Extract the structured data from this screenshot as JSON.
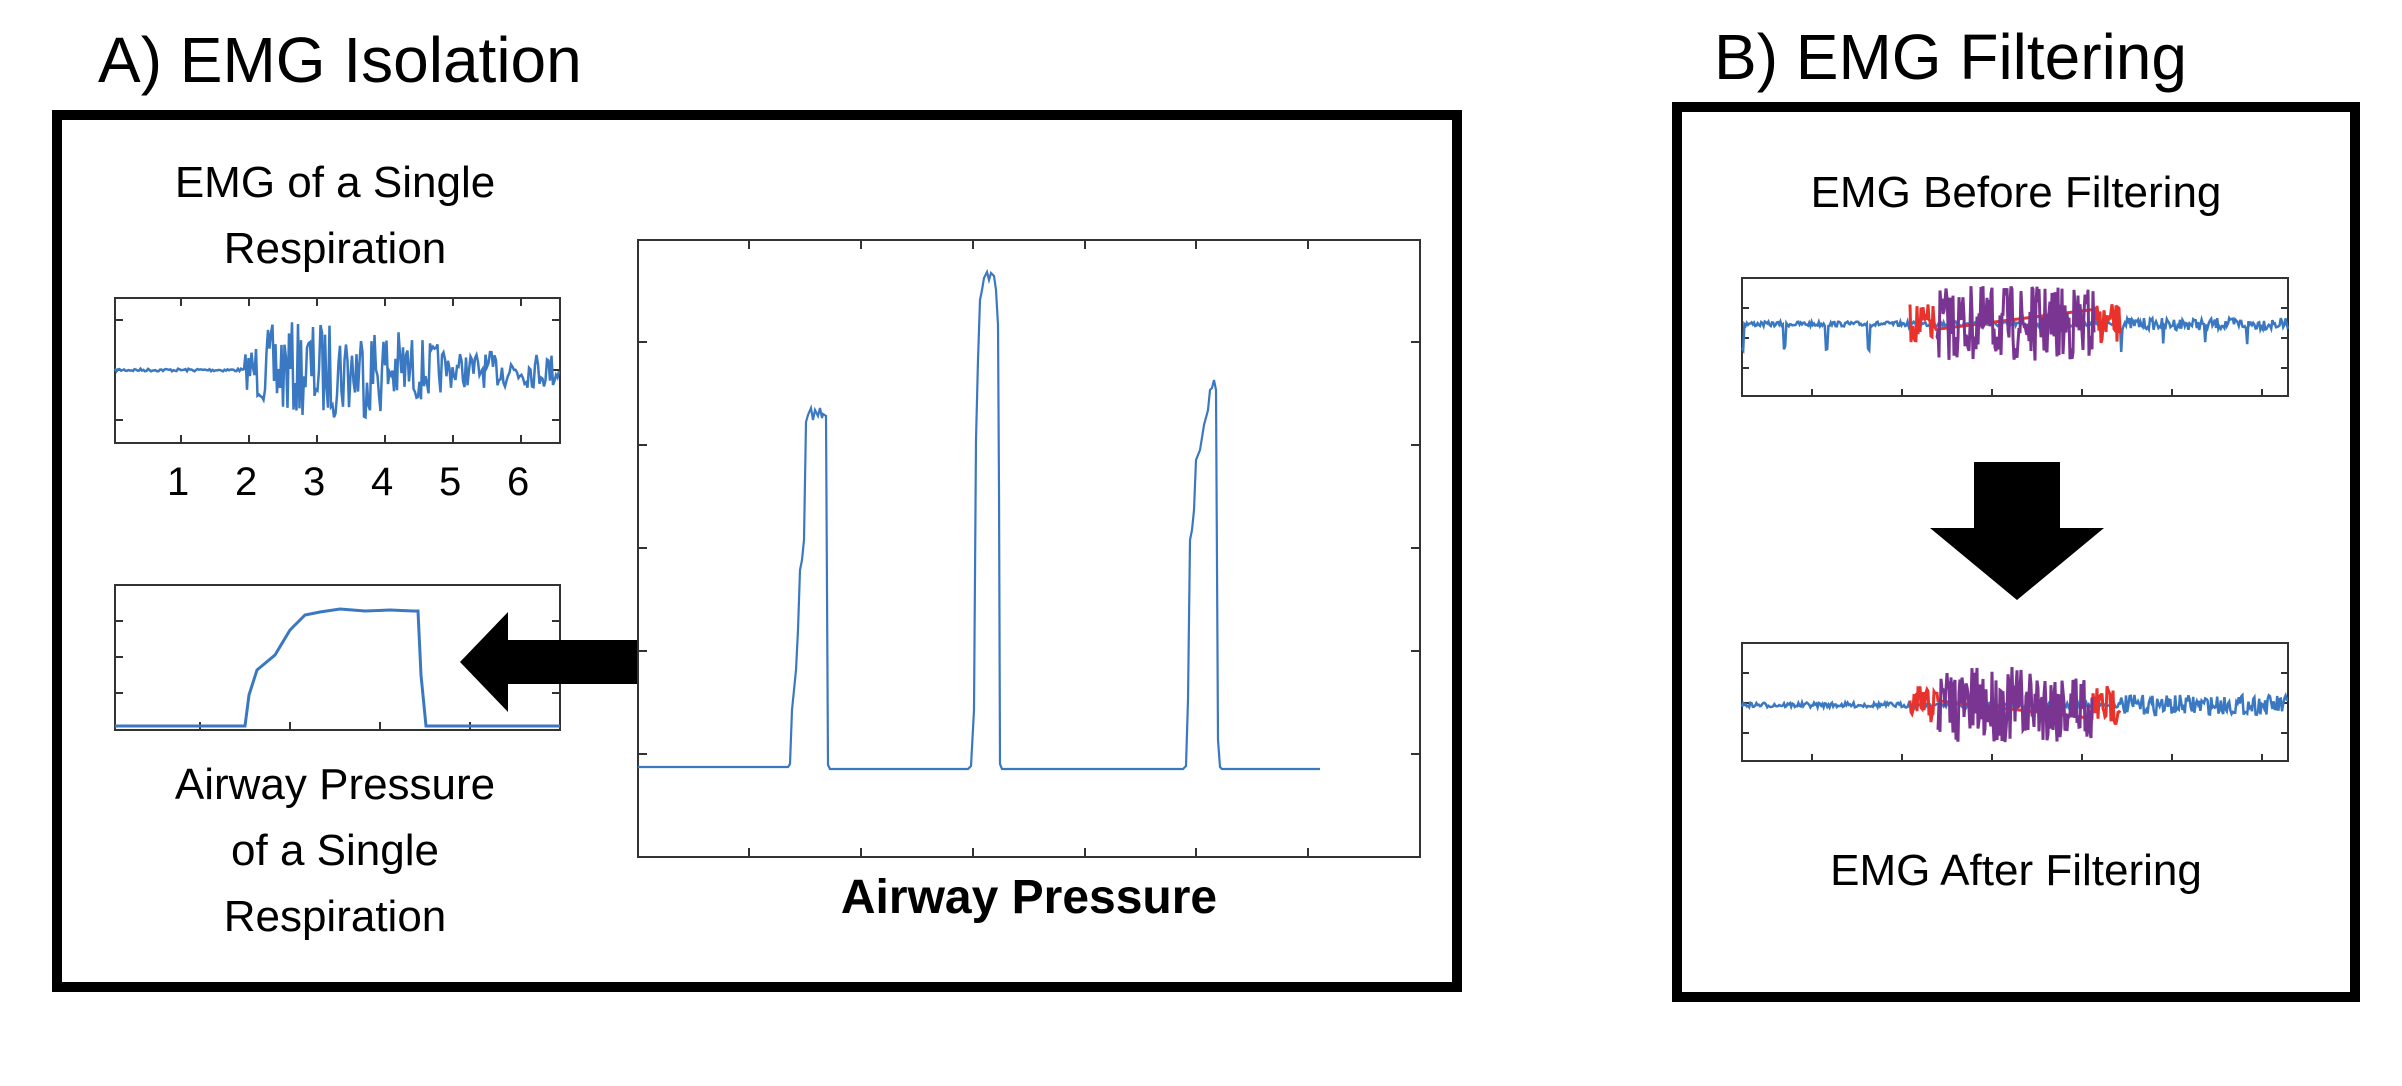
{
  "panel_a": {
    "title": "A) EMG Isolation",
    "emg_single": {
      "caption_line1": "EMG of a Single",
      "caption_line2": "Respiration",
      "x_ticks": [
        "1",
        "2",
        "3",
        "4",
        "5",
        "6"
      ]
    },
    "pressure_single": {
      "caption_line1": "Airway Pressure",
      "caption_line2": "of a Single",
      "caption_line3": "Respiration"
    },
    "airway_plot": {
      "label": "Airway Pressure"
    }
  },
  "panel_b": {
    "title": "B) EMG Filtering",
    "before_label": "EMG Before Filtering",
    "after_label": "EMG After Filtering"
  },
  "colors": {
    "signal": "#3b78c2",
    "emg_core": "#7a3592",
    "emg_edge": "#e8322b",
    "frame": "#000000"
  }
}
